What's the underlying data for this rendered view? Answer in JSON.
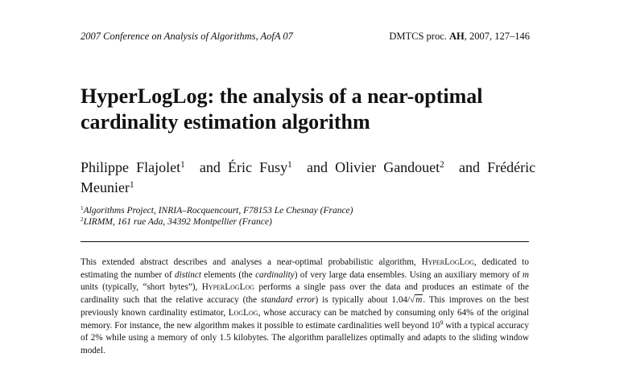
{
  "header": {
    "conference": "2007 Conference on Analysis of Algorithms, AofA 07",
    "proc_prefix": "DMTCS proc.",
    "proc_volume": "AH",
    "proc_suffix": ", 2007, 127–146"
  },
  "title": {
    "line1": "HyperLogLog: the analysis of a near-optimal",
    "line2": "cardinality estimation algorithm"
  },
  "authors": [
    {
      "name": "Philippe Flajolet",
      "affil": "1"
    },
    {
      "name": "Éric Fusy",
      "affil": "1"
    },
    {
      "name": "Olivier Gandouet",
      "affil": "2"
    },
    {
      "name": "Frédéric Meunier",
      "affil": "1"
    }
  ],
  "connector": "and",
  "affiliations": [
    {
      "num": "1",
      "text": "Algorithms Project, INRIA–Rocquencourt, F78153 Le Chesnay (France)"
    },
    {
      "num": "2",
      "text": "LIRMM, 161 rue Ada, 34392 Montpellier (France)"
    }
  ],
  "abstract": {
    "t1": "This extended abstract describes and analyses a near-optimal probabilistic algorithm, ",
    "hll": "HyperLogLog",
    "t2": ", dedicated to estimating the number of ",
    "distinct": "distinct",
    "t3": " elements (the ",
    "cardinality": "cardinality",
    "t4": ") of very large data ensembles. Using an auxiliary memory of ",
    "m": "m",
    "t5": " units (typically, “short bytes”), ",
    "hll2": "HyperLogLog",
    "t6": " performs a single pass over the data and produces an estimate of the cardinality such that the relative accuracy (the ",
    "std_error": "standard error",
    "t7": ") is typically about 1.04/",
    "sqrt_sign": "√",
    "sqrt_m": "m",
    "t8": ". This improves on the best previously known cardinality estimator, ",
    "loglog": "LogLog",
    "t9": ", whose accuracy can be matched by consuming only 64% of the original memory. For instance, the new algorithm makes it possible to estimate cardinalities well beyond 10",
    "exp9": "9",
    "t10": " with a typical accuracy of 2% while using a memory of only 1.5 kilobytes. The algorithm parallelizes optimally and adapts to the sliding window model."
  }
}
